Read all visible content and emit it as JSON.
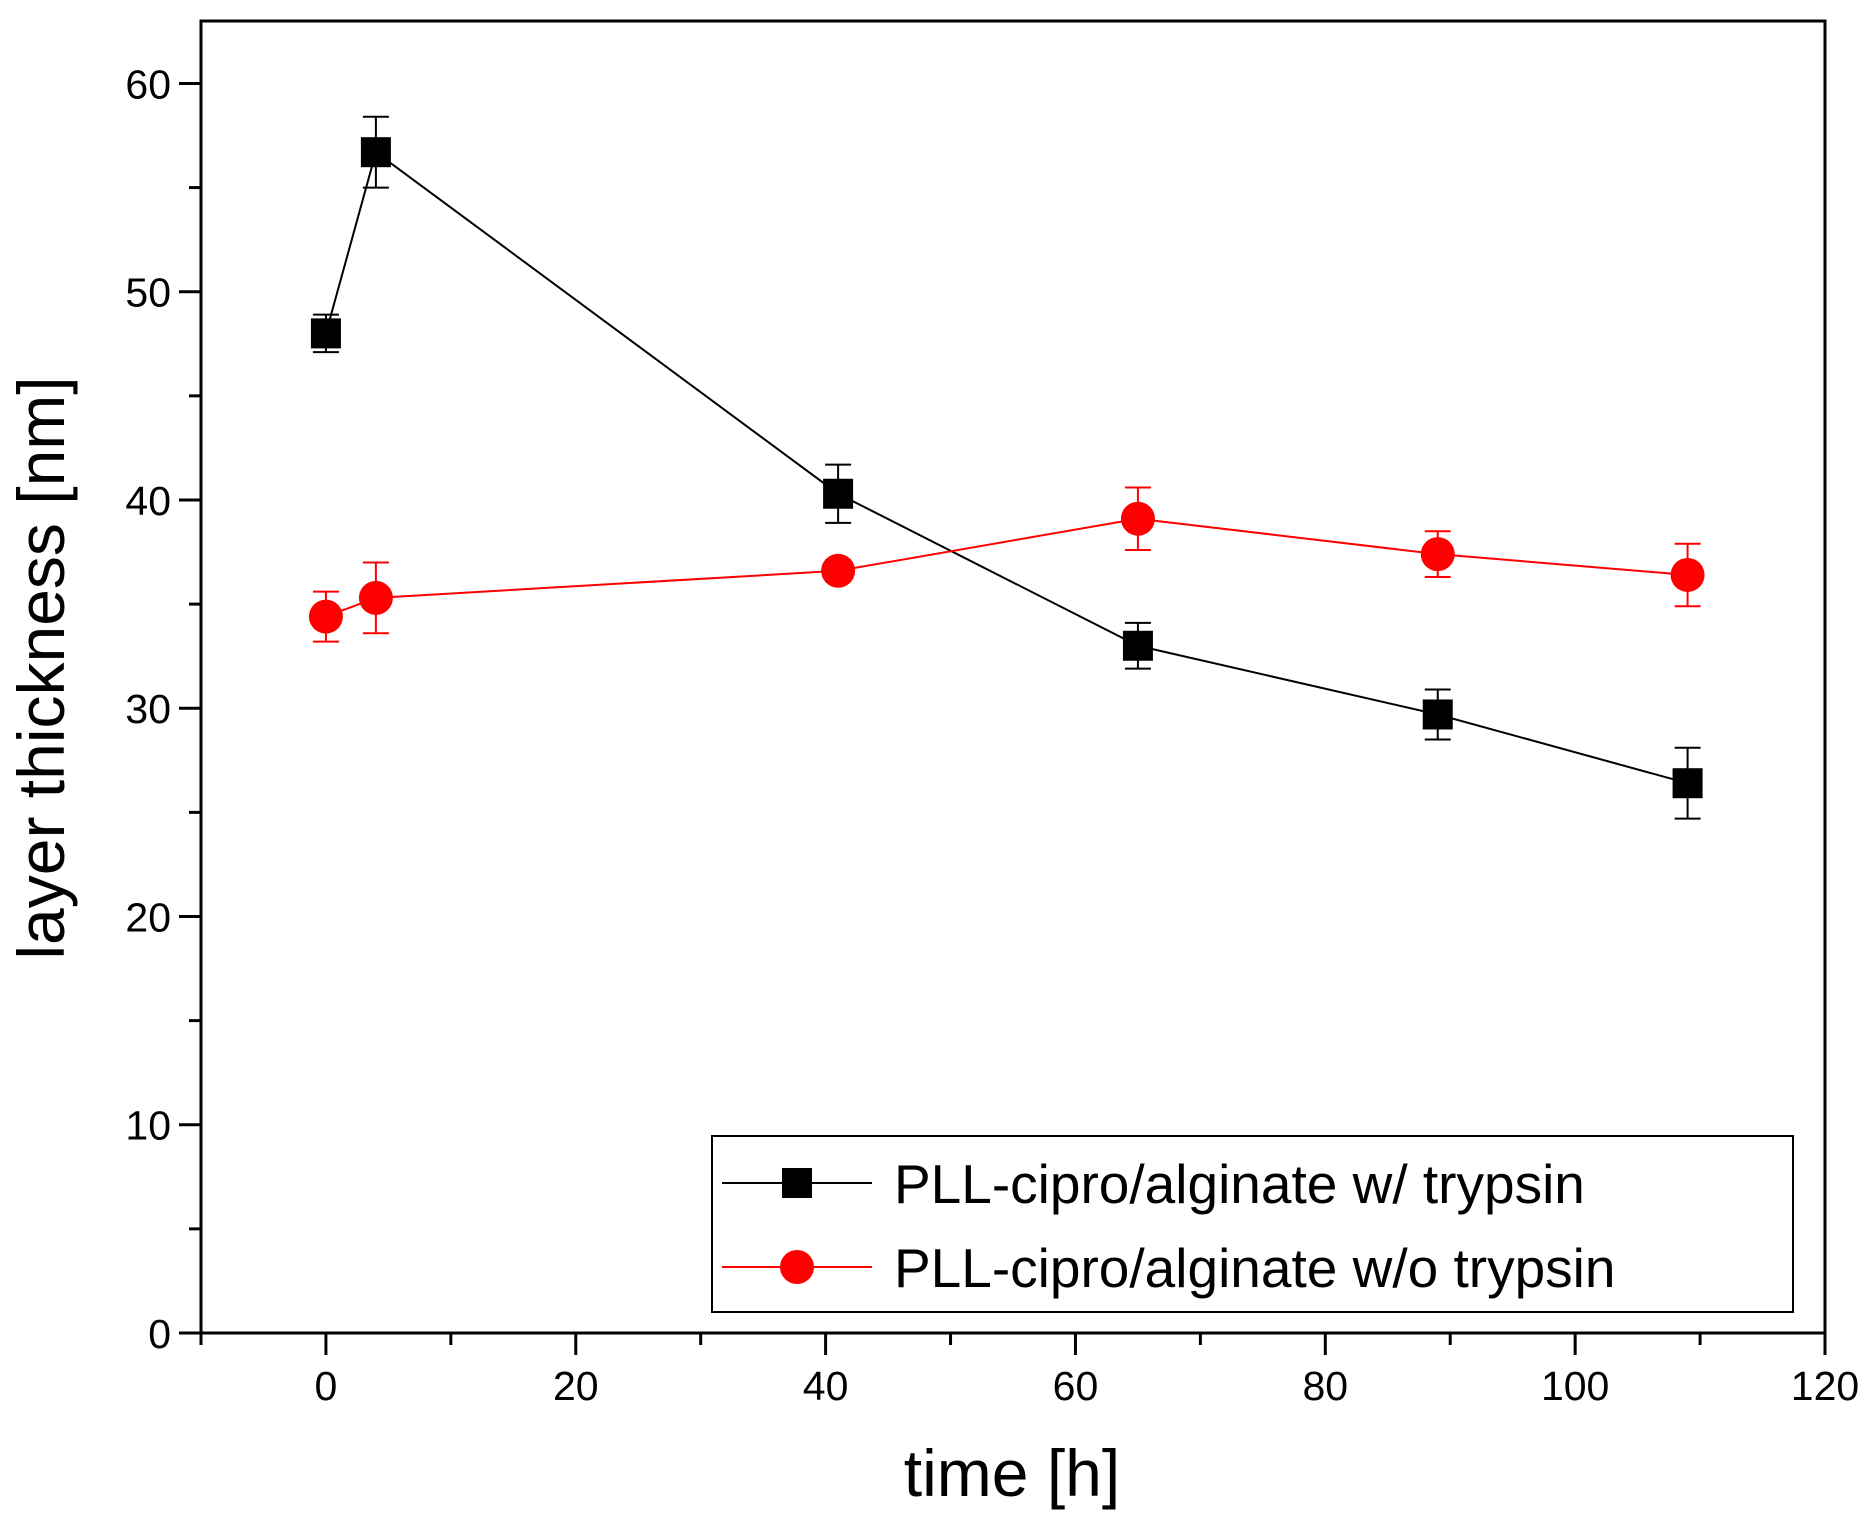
{
  "chart_data": {
    "type": "line",
    "title": "",
    "xlabel": "time [h]",
    "ylabel": "layer thickness [nm]",
    "xlim": [
      -10,
      120
    ],
    "ylim": [
      0,
      63
    ],
    "xticks": [
      0,
      20,
      40,
      60,
      80,
      100,
      120
    ],
    "yticks": [
      0,
      10,
      20,
      30,
      40,
      50,
      60
    ],
    "xtick_labels": [
      "0",
      "20",
      "40",
      "60",
      "80",
      "100",
      "120"
    ],
    "ytick_labels": [
      "0",
      "10",
      "20",
      "30",
      "40",
      "50",
      "60"
    ],
    "grid": false,
    "legend_position": "bottom-right",
    "series": [
      {
        "name": "PLL-cipro/alginate w/ trypsin",
        "color": "#000000",
        "marker": "square",
        "x": [
          0,
          4,
          41,
          65,
          89,
          109
        ],
        "y": [
          48.0,
          56.7,
          40.3,
          33.0,
          29.7,
          26.4
        ],
        "yerr": [
          0.9,
          1.7,
          1.4,
          1.1,
          1.2,
          1.7
        ]
      },
      {
        "name": "PLL-cipro/alginate w/o trypsin",
        "color": "#ff0000",
        "marker": "circle",
        "x": [
          0,
          4,
          41,
          65,
          89,
          109
        ],
        "y": [
          34.4,
          35.3,
          36.6,
          39.1,
          37.4,
          36.4
        ],
        "yerr": [
          1.2,
          1.7,
          0.5,
          1.5,
          1.1,
          1.5
        ]
      }
    ]
  }
}
